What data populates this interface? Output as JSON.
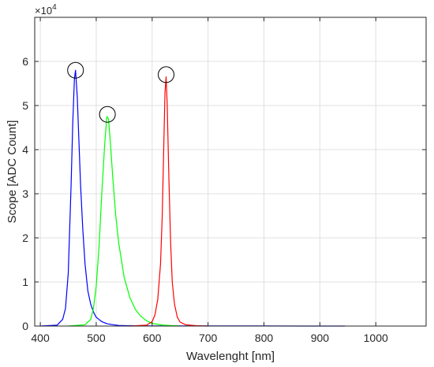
{
  "chart_data": {
    "type": "line",
    "title": "",
    "xlabel": "Wavelenght [nm]",
    "ylabel": "Scope [ADC Count]",
    "y_multiplier_base": "×10",
    "y_multiplier_exponent": "4",
    "xlim": [
      390,
      1090
    ],
    "ylim": [
      0,
      70000
    ],
    "x_ticks": [
      400,
      500,
      600,
      700,
      800,
      900,
      1000
    ],
    "y_ticks": [
      0,
      10000,
      20000,
      30000,
      40000,
      50000,
      60000
    ],
    "x_tick_labels": [
      "400",
      "500",
      "600",
      "700",
      "800",
      "900",
      "1000"
    ],
    "y_tick_labels": [
      "0",
      "1",
      "2",
      "3",
      "4",
      "5",
      "6"
    ],
    "grid": true,
    "series": [
      {
        "color": "#0000ff",
        "x": [
          400,
          430,
          440,
          445,
          450,
          455,
          458,
          461,
          463,
          466,
          469,
          472,
          476,
          480,
          485,
          490,
          495,
          500,
          510,
          520,
          530,
          540,
          560,
          600,
          700,
          800,
          900,
          945
        ],
        "y": [
          0,
          200,
          1500,
          4000,
          12000,
          32000,
          46000,
          56000,
          58000,
          52000,
          42000,
          32000,
          22000,
          14000,
          8000,
          5000,
          3200,
          2000,
          1000,
          500,
          300,
          150,
          80,
          40,
          20,
          10,
          5,
          0
        ]
      },
      {
        "color": "#00ff00",
        "x": [
          450,
          480,
          490,
          495,
          500,
          505,
          510,
          515,
          519,
          522,
          525,
          530,
          535,
          540,
          550,
          560,
          570,
          580,
          590,
          600,
          620,
          650
        ],
        "y": [
          0,
          300,
          1500,
          4000,
          9000,
          18000,
          30000,
          41000,
          47500,
          47000,
          42000,
          33000,
          25000,
          19000,
          11000,
          6500,
          3800,
          2200,
          1200,
          600,
          200,
          0
        ]
      },
      {
        "color": "#ff0000",
        "x": [
          560,
          590,
          600,
          605,
          610,
          615,
          618,
          621,
          623,
          625,
          627,
          630,
          633,
          636,
          640,
          645,
          650,
          660,
          680,
          700
        ],
        "y": [
          0,
          200,
          1000,
          2500,
          6000,
          14000,
          25000,
          42000,
          53000,
          56500,
          50000,
          33000,
          19000,
          10000,
          5000,
          2000,
          900,
          300,
          80,
          0
        ]
      }
    ],
    "annotations": [
      {
        "type": "circle",
        "x": 463,
        "y": 58000
      },
      {
        "type": "circle",
        "x": 520,
        "y": 48000
      },
      {
        "type": "circle",
        "x": 625,
        "y": 57000
      }
    ]
  }
}
